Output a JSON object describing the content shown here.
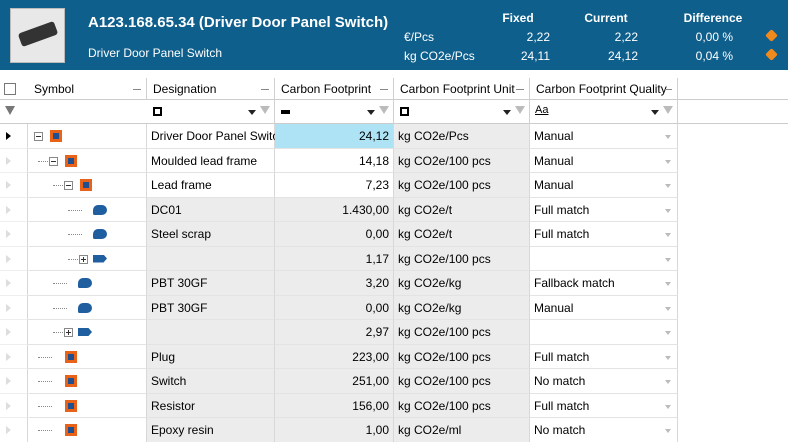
{
  "header": {
    "title": "A123.168.65.34 (Driver Door Panel Switch)",
    "subtitle": "Driver Door Panel Switch",
    "columns": [
      "Fixed",
      "Current",
      "Difference"
    ],
    "rows": [
      {
        "label": "€/Pcs",
        "fixed": "2,22",
        "current": "2,22",
        "difference": "0,00 %"
      },
      {
        "label": "kg CO2e/Pcs",
        "fixed": "24,11",
        "current": "24,12",
        "difference": "0,04 %"
      }
    ]
  },
  "grid": {
    "columns": [
      "Symbol",
      "Designation",
      "Carbon Footprint",
      "Carbon Footprint Unit",
      "Carbon Footprint Quality"
    ],
    "quality_filter": "Aa",
    "rows": [
      {
        "designation": "Driver Door Panel Switch",
        "footprint": "24,12",
        "unit": "kg CO2e/Pcs",
        "quality": "Manual"
      },
      {
        "designation": "Moulded lead frame",
        "footprint": "14,18",
        "unit": "kg CO2e/100 pcs",
        "quality": "Manual"
      },
      {
        "designation": "Lead frame",
        "footprint": "7,23",
        "unit": "kg CO2e/100 pcs",
        "quality": "Manual"
      },
      {
        "designation": "DC01",
        "footprint": "1.430,00",
        "unit": "kg CO2e/t",
        "quality": "Full match"
      },
      {
        "designation": "Steel scrap",
        "footprint": "0,00",
        "unit": "kg CO2e/t",
        "quality": "Full match"
      },
      {
        "footprint": "1,17",
        "unit": "kg CO2e/100 pcs"
      },
      {
        "designation": "PBT 30GF",
        "footprint": "3,20",
        "unit": "kg CO2e/kg",
        "quality": "Fallback match"
      },
      {
        "designation": "PBT 30GF",
        "footprint": "0,00",
        "unit": "kg CO2e/kg",
        "quality": "Manual"
      },
      {
        "footprint": "2,97",
        "unit": "kg CO2e/100 pcs"
      },
      {
        "designation": "Plug",
        "footprint": "223,00",
        "unit": "kg CO2e/100 pcs",
        "quality": "Full match"
      },
      {
        "designation": "Switch",
        "footprint": "251,00",
        "unit": "kg CO2e/100 pcs",
        "quality": "No match"
      },
      {
        "designation": "Resistor",
        "footprint": "156,00",
        "unit": "kg CO2e/100 pcs",
        "quality": "Full match"
      },
      {
        "designation": "Epoxy resin",
        "footprint": "1,00",
        "unit": "kg CO2e/ml",
        "quality": "No match"
      }
    ]
  }
}
